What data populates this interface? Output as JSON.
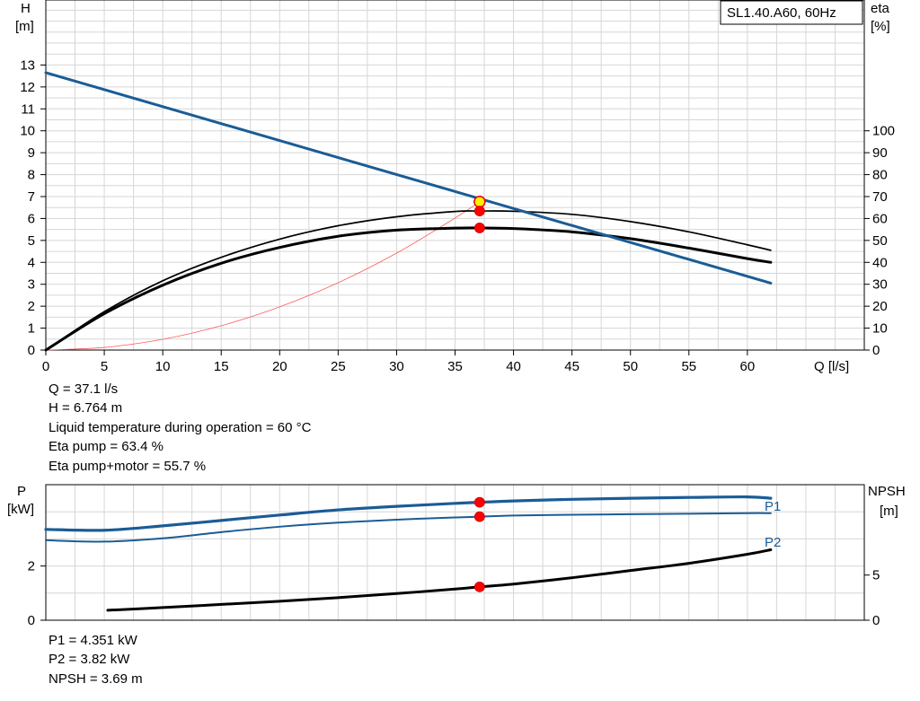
{
  "chart_data": [
    {
      "type": "line",
      "model_label": "SL1.40.A60, 60Hz",
      "xlabel": "Q [l/s]",
      "ylabel_left": [
        "H",
        "[m]"
      ],
      "ylabel_right": [
        "eta",
        "[%]"
      ],
      "xlim": [
        0,
        70
      ],
      "ylim_left": [
        0,
        14
      ],
      "ylim_right": [
        0,
        140
      ],
      "x_ticks": [
        0,
        5,
        10,
        15,
        20,
        25,
        30,
        35,
        40,
        45,
        50,
        55,
        60
      ],
      "y_ticks_left": [
        0,
        1,
        2,
        3,
        4,
        5,
        6,
        7,
        8,
        9,
        10,
        11,
        12,
        13
      ],
      "y_ticks_right": [
        0,
        10,
        20,
        30,
        40,
        50,
        60,
        70,
        80,
        90,
        100
      ],
      "series": [
        {
          "key": "H",
          "axis": "left",
          "color": "#1a5c96",
          "x": [
            0,
            62
          ],
          "y": [
            12.65,
            3.05
          ]
        },
        {
          "key": "eta_pump",
          "axis": "right",
          "color": "#000000",
          "x": [
            0,
            5,
            10,
            15,
            20,
            25,
            30,
            35,
            37.1,
            40,
            45,
            50,
            55,
            60,
            62
          ],
          "y": [
            0,
            17.5,
            31.6,
            42.3,
            50.6,
            56.7,
            60.8,
            63.2,
            63.4,
            63.3,
            61.9,
            58.6,
            53.9,
            48.0,
            45.5
          ]
        },
        {
          "key": "eta_pump_motor",
          "axis": "right",
          "color": "#000000",
          "x": [
            0,
            5,
            10,
            15,
            20,
            25,
            30,
            35,
            37.1,
            40,
            45,
            50,
            55,
            60,
            62
          ],
          "y": [
            0,
            16.6,
            29.6,
            39.6,
            46.8,
            51.9,
            54.7,
            55.6,
            55.7,
            55.4,
            53.9,
            50.8,
            46.5,
            41.7,
            40.0
          ]
        },
        {
          "key": "system_curve",
          "axis": "left",
          "color": "#ff5a5a",
          "x": [
            0,
            5,
            10,
            15,
            20,
            25,
            30,
            35,
            37.1
          ],
          "y": [
            0,
            0.12,
            0.49,
            1.11,
            1.97,
            3.07,
            4.42,
            6.02,
            6.764
          ]
        }
      ],
      "operating_points": [
        {
          "x": 37.1,
          "y": 6.764,
          "axis": "left",
          "marker": "yellow"
        },
        {
          "x": 37.1,
          "y": 63.4,
          "axis": "right",
          "marker": "red"
        },
        {
          "x": 37.1,
          "y": 55.7,
          "axis": "right",
          "marker": "red"
        }
      ]
    },
    {
      "type": "line",
      "ylabel_left": [
        "P",
        "[kW]"
      ],
      "ylabel_right": [
        "NPSH",
        "[m]"
      ],
      "xlim": [
        0,
        70
      ],
      "ylim_left": [
        0,
        5
      ],
      "ylim_right": [
        0,
        15
      ],
      "y_ticks_left": [
        0,
        2
      ],
      "y_ticks_right": [
        0,
        5
      ],
      "series": [
        {
          "key": "P1",
          "name": "P1",
          "axis": "left",
          "color": "#1a5c96",
          "x": [
            0,
            5,
            10,
            15,
            20,
            25,
            30,
            35,
            37.1,
            40,
            45,
            50,
            55,
            60,
            62
          ],
          "y": [
            3.35,
            3.32,
            3.48,
            3.68,
            3.88,
            4.07,
            4.2,
            4.31,
            4.351,
            4.4,
            4.46,
            4.5,
            4.53,
            4.55,
            4.5
          ]
        },
        {
          "key": "P2",
          "name": "P2",
          "axis": "left",
          "color": "#1a5c96",
          "x": [
            0,
            5,
            10,
            15,
            20,
            25,
            30,
            35,
            37.1,
            40,
            45,
            50,
            55,
            60,
            62
          ],
          "y": [
            2.95,
            2.9,
            3.02,
            3.25,
            3.45,
            3.6,
            3.71,
            3.79,
            3.82,
            3.86,
            3.89,
            3.91,
            3.93,
            3.95,
            3.95
          ]
        },
        {
          "key": "NPSH",
          "axis": "right",
          "color": "#000000",
          "x": [
            5.3,
            10,
            15,
            20,
            25,
            30,
            35,
            37.1,
            40,
            45,
            50,
            55,
            60,
            62
          ],
          "y": [
            1.1,
            1.4,
            1.75,
            2.1,
            2.5,
            2.95,
            3.45,
            3.69,
            4.0,
            4.7,
            5.5,
            6.3,
            7.3,
            7.8
          ]
        }
      ],
      "operating_points": [
        {
          "x": 37.1,
          "y": 4.351,
          "axis": "left",
          "marker": "red"
        },
        {
          "x": 37.1,
          "y": 3.82,
          "axis": "left",
          "marker": "red"
        },
        {
          "x": 37.1,
          "y": 3.69,
          "axis": "right",
          "marker": "red"
        }
      ]
    }
  ],
  "results_top": {
    "q": "Q = 37.1 l/s",
    "h": "H = 6.764 m",
    "temp": "Liquid temperature during operation = 60 °C",
    "eta_pump": "Eta pump = 63.4 %",
    "eta_total": "Eta pump+motor = 55.7 %"
  },
  "results_bottom": {
    "p1": "P1 = 4.351 kW",
    "p2": "P2 = 3.82 kW",
    "npsh": "NPSH = 3.69 m"
  }
}
